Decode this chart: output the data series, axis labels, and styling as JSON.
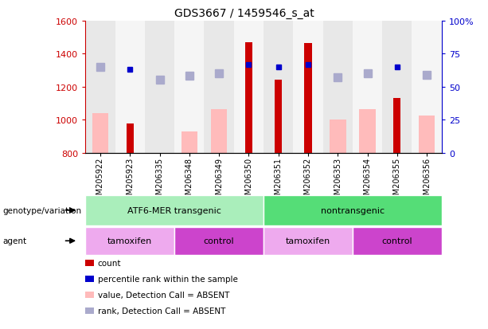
{
  "title": "GDS3667 / 1459546_s_at",
  "samples": [
    "GSM205922",
    "GSM205923",
    "GSM206335",
    "GSM206348",
    "GSM206349",
    "GSM206350",
    "GSM206351",
    "GSM206352",
    "GSM206353",
    "GSM206354",
    "GSM206355",
    "GSM206356"
  ],
  "count_values": [
    null,
    975,
    null,
    null,
    null,
    1470,
    1240,
    1465,
    null,
    null,
    1130,
    null
  ],
  "count_absent_values": [
    1040,
    null,
    null,
    930,
    1065,
    null,
    null,
    null,
    1000,
    1065,
    null,
    1025
  ],
  "percentile_rank": [
    null,
    63,
    null,
    null,
    null,
    67,
    65,
    67,
    null,
    null,
    65,
    null
  ],
  "percentile_rank_absent": [
    65,
    null,
    55,
    58,
    60,
    null,
    null,
    null,
    57,
    60,
    null,
    59
  ],
  "ylim_left": [
    800,
    1600
  ],
  "ylim_right": [
    0,
    100
  ],
  "yticks_left": [
    800,
    1000,
    1200,
    1400,
    1600
  ],
  "yticks_right": [
    0,
    25,
    50,
    75,
    100
  ],
  "color_count": "#cc0000",
  "color_count_absent": "#ffbbbb",
  "color_percentile": "#0000cc",
  "color_percentile_absent": "#aaaacc",
  "genotype_groups": [
    {
      "label": "ATF6-MER transgenic",
      "start": 0,
      "end": 5,
      "color": "#aaeebb"
    },
    {
      "label": "nontransgenic",
      "start": 6,
      "end": 11,
      "color": "#55dd77"
    }
  ],
  "agent_groups": [
    {
      "label": "tamoxifen",
      "start": 0,
      "end": 2,
      "color": "#eeaaee"
    },
    {
      "label": "control",
      "start": 3,
      "end": 5,
      "color": "#cc44cc"
    },
    {
      "label": "tamoxifen",
      "start": 6,
      "end": 8,
      "color": "#eeaaee"
    },
    {
      "label": "control",
      "start": 9,
      "end": 11,
      "color": "#cc44cc"
    }
  ],
  "legend_items": [
    {
      "label": "count",
      "color": "#cc0000"
    },
    {
      "label": "percentile rank within the sample",
      "color": "#0000cc"
    },
    {
      "label": "value, Detection Call = ABSENT",
      "color": "#ffbbbb"
    },
    {
      "label": "rank, Detection Call = ABSENT",
      "color": "#aaaacc"
    }
  ]
}
